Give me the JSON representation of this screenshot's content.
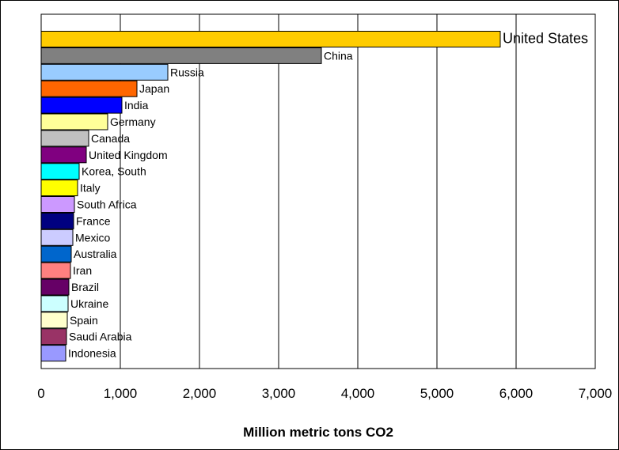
{
  "chart_data": {
    "type": "bar",
    "orientation": "horizontal",
    "title": "",
    "xlabel": "Million metric tons CO2",
    "ylabel": "",
    "xlim": [
      0,
      7000
    ],
    "x_ticks": [
      0,
      1000,
      2000,
      3000,
      4000,
      5000,
      6000,
      7000
    ],
    "x_tick_labels": [
      "0",
      "1,000",
      "2,000",
      "3,000",
      "4,000",
      "5,000",
      "6,000",
      "7,000"
    ],
    "grid": "vertical",
    "categories": [
      "United States",
      "China",
      "Russia",
      "Japan",
      "India",
      "Germany",
      "Canada",
      "United Kingdom",
      "Korea, South",
      "Italy",
      "South Africa",
      "France",
      "Mexico",
      "Australia",
      "Iran",
      "Brazil",
      "Ukraine",
      "Spain",
      "Saudi Arabia",
      "Indonesia"
    ],
    "values": [
      5800,
      3540,
      1600,
      1210,
      1020,
      840,
      600,
      570,
      480,
      460,
      420,
      410,
      400,
      380,
      370,
      350,
      340,
      330,
      320,
      310
    ],
    "colors": [
      "#FFCC00",
      "#808080",
      "#99CCFF",
      "#FF6600",
      "#0000FF",
      "#FFFF99",
      "#C0C0C0",
      "#800080",
      "#00FFFF",
      "#FFFF00",
      "#CC99FF",
      "#000080",
      "#CCCCFF",
      "#0066CC",
      "#FF8080",
      "#660066",
      "#CCFFFF",
      "#FFFFCC",
      "#993366",
      "#9999FF"
    ]
  }
}
